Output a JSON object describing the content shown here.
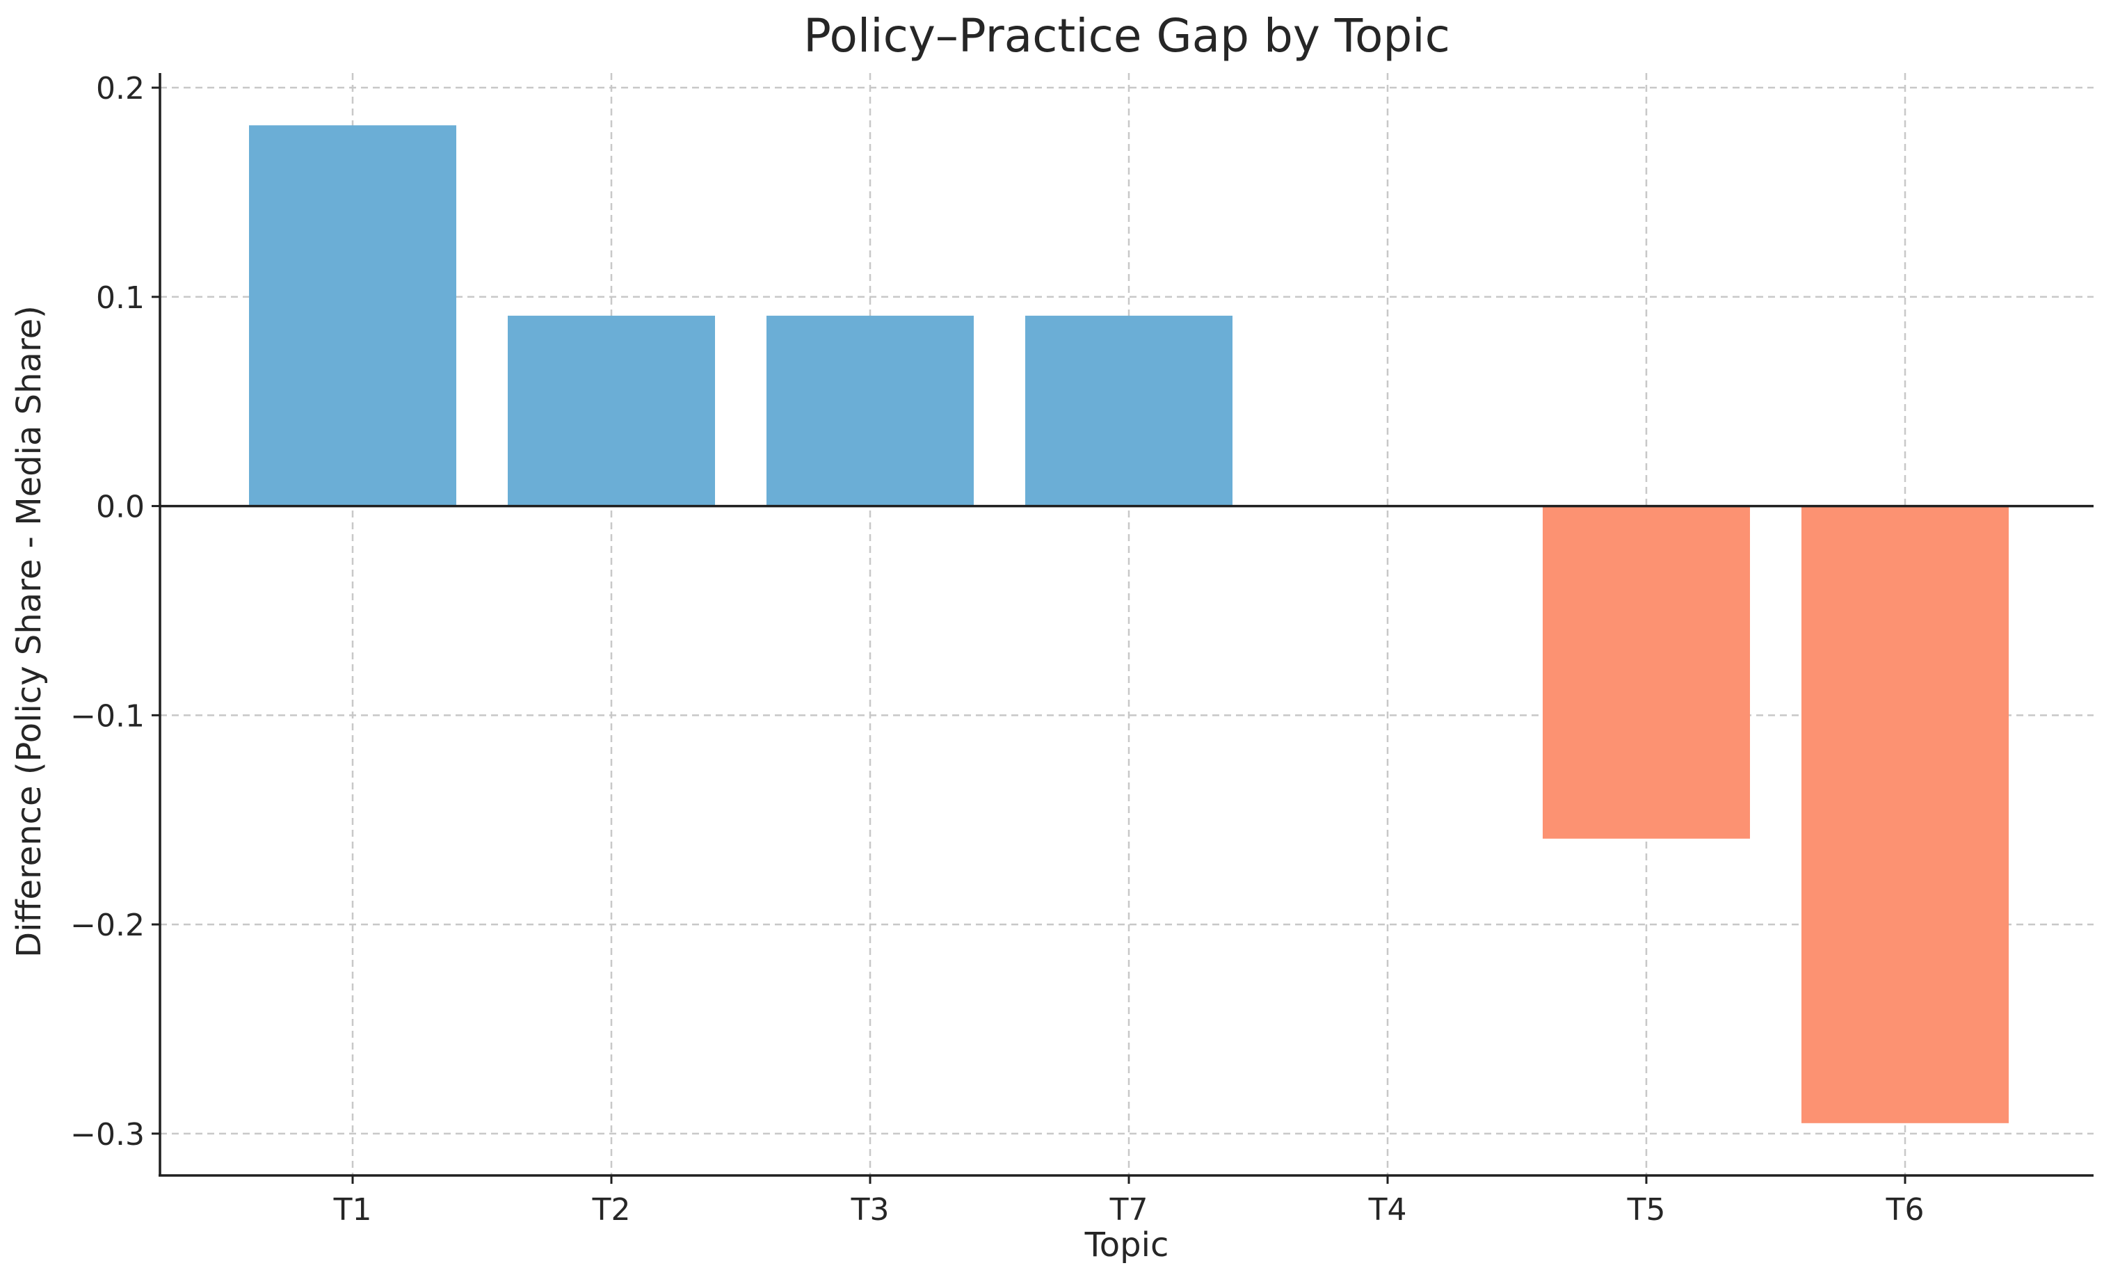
{
  "chart_data": {
    "type": "bar",
    "title": "Policy–Practice Gap by Topic",
    "xlabel": "Topic",
    "ylabel": "Difference (Policy Share - Media Share)",
    "categories": [
      "T1",
      "T2",
      "T3",
      "T7",
      "T4",
      "T5",
      "T6"
    ],
    "values": [
      0.182,
      0.091,
      0.091,
      0.091,
      0.0,
      -0.159,
      -0.295
    ],
    "ylim": [
      -0.32,
      0.207
    ],
    "yticks": [
      0.2,
      0.1,
      0.0,
      -0.1,
      -0.2,
      -0.3
    ],
    "ytick_labels": [
      "0.2",
      "0.1",
      "0.0",
      "−0.1",
      "−0.2",
      "−0.3"
    ],
    "grid": true,
    "colors": {
      "positive": "#6baed6",
      "negative": "#fc9272",
      "axis": "#1f1f1f",
      "grid": "#c8c8c8",
      "text": "#262626"
    }
  }
}
